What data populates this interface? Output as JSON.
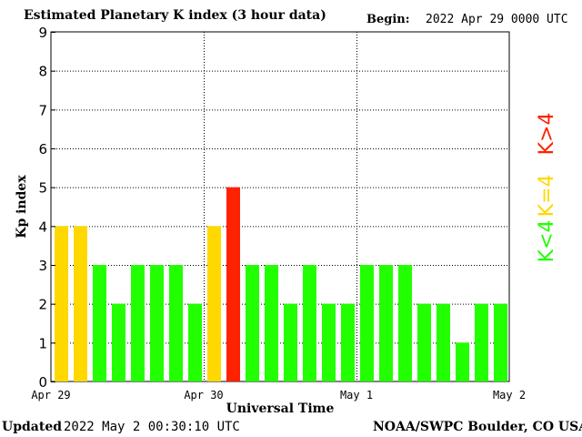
{
  "header": {
    "title": "Estimated Planetary K index (3 hour data)",
    "begin_label": "Begin:",
    "begin_value": "2022 Apr 29 0000 UTC"
  },
  "footer": {
    "updated_label": "Updated",
    "updated_value": "2022 May  2 00:30:10 UTC",
    "credit": "NOAA/SWPC Boulder, CO USA"
  },
  "chart_data": {
    "type": "bar",
    "ylabel": "Kp index",
    "xlabel": "Universal Time",
    "ylim": [
      0,
      9
    ],
    "yticks": [
      "0",
      "1",
      "2",
      "3",
      "4",
      "5",
      "6",
      "7",
      "8",
      "9"
    ],
    "xtick_labels": [
      "Apr 29",
      "Apr 30",
      "May 1",
      "May 2"
    ],
    "grid": true,
    "values": [
      4,
      4,
      3,
      2,
      3,
      3,
      3,
      2,
      4,
      5,
      3,
      3,
      2,
      3,
      2,
      2,
      3,
      3,
      3,
      2,
      2,
      1,
      2,
      2
    ],
    "colors": {
      "below": "#22ff00",
      "equal": "#ffd800",
      "above": "#ff2200"
    },
    "legend": [
      {
        "label": "K<4",
        "color": "#22ff00"
      },
      {
        "label": "K=4",
        "color": "#ffd800"
      },
      {
        "label": "K>4",
        "color": "#ff2200"
      }
    ],
    "legend_position": "right"
  }
}
